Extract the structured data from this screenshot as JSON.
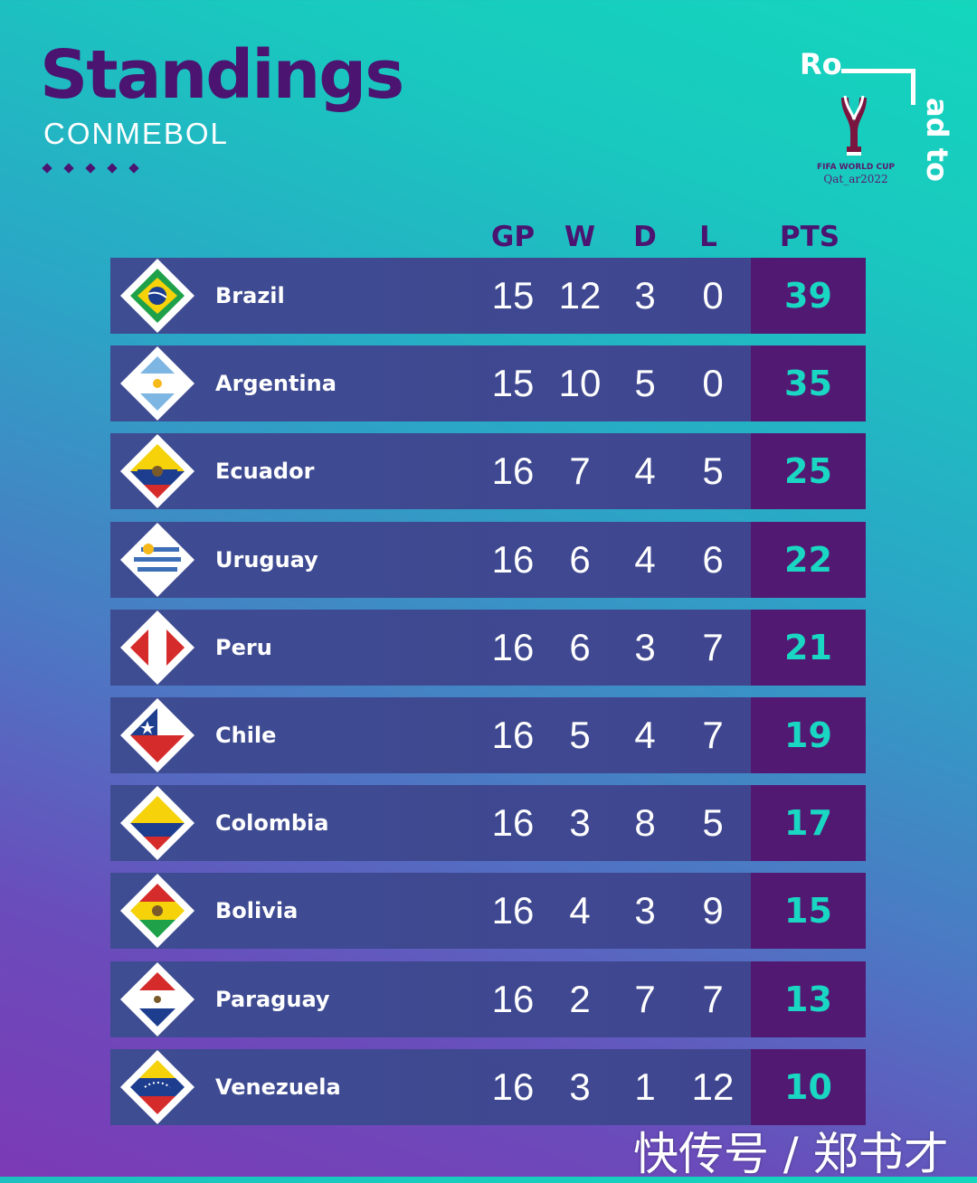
{
  "header": {
    "title": "Standings",
    "subtitle": "CONMEBOL"
  },
  "logo": {
    "road_part1": "Ro",
    "road_part2": "ad to",
    "fifa": "FIFA WORLD CUP",
    "qatar": "Qat_ar2022"
  },
  "columns": {
    "gp": "GP",
    "w": "W",
    "d": "D",
    "l": "L",
    "pts": "PTS"
  },
  "rows": [
    {
      "team": "Brazil",
      "gp": "15",
      "w": "12",
      "d": "3",
      "l": "0",
      "pts": "39",
      "flag": "brazil"
    },
    {
      "team": "Argentina",
      "gp": "15",
      "w": "10",
      "d": "5",
      "l": "0",
      "pts": "35",
      "flag": "argentina"
    },
    {
      "team": "Ecuador",
      "gp": "16",
      "w": "7",
      "d": "4",
      "l": "5",
      "pts": "25",
      "flag": "ecuador"
    },
    {
      "team": "Uruguay",
      "gp": "16",
      "w": "6",
      "d": "4",
      "l": "6",
      "pts": "22",
      "flag": "uruguay"
    },
    {
      "team": "Peru",
      "gp": "16",
      "w": "6",
      "d": "3",
      "l": "7",
      "pts": "21",
      "flag": "peru"
    },
    {
      "team": "Chile",
      "gp": "16",
      "w": "5",
      "d": "4",
      "l": "7",
      "pts": "19",
      "flag": "chile"
    },
    {
      "team": "Colombia",
      "gp": "16",
      "w": "3",
      "d": "8",
      "l": "5",
      "pts": "17",
      "flag": "colombia"
    },
    {
      "team": "Bolivia",
      "gp": "16",
      "w": "4",
      "d": "3",
      "l": "9",
      "pts": "15",
      "flag": "bolivia"
    },
    {
      "team": "Paraguay",
      "gp": "16",
      "w": "2",
      "d": "7",
      "l": "7",
      "pts": "13",
      "flag": "paraguay"
    },
    {
      "team": "Venezuela",
      "gp": "16",
      "w": "3",
      "d": "1",
      "l": "12",
      "pts": "10",
      "flag": "venezuela"
    }
  ],
  "watermark": "快传号 / 郑书才",
  "colors": {
    "title": "#4a1470",
    "points": "#19d7c2",
    "points_bg": "#521973",
    "row_bg": "#3f478f"
  }
}
